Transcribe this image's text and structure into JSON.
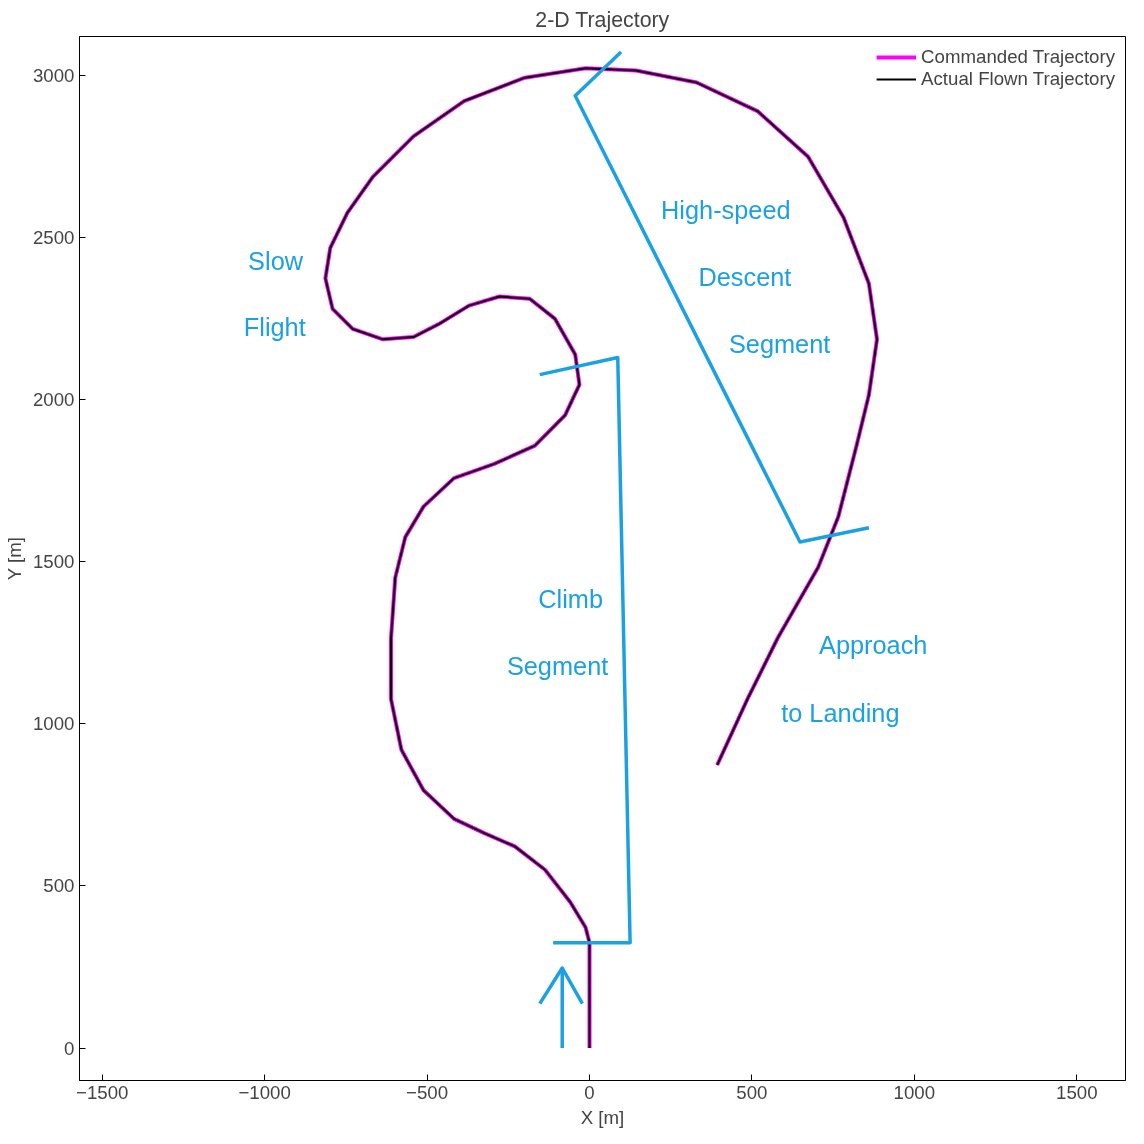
{
  "chart_data": {
    "type": "line",
    "title": "2-D Trajectory",
    "xlabel": "X [m]",
    "ylabel": "Y [m]",
    "xlim": [
      -1570,
      1650
    ],
    "ylim": [
      -100,
      3120
    ],
    "xticks": [
      -1500,
      -1000,
      -500,
      0,
      500,
      1000,
      1500
    ],
    "yticks": [
      0,
      500,
      1000,
      1500,
      2000,
      2500,
      3000
    ],
    "grid": false,
    "legend": "top right",
    "line_style": "solid",
    "marker": "none",
    "x": [
      0,
      0,
      -12,
      -59,
      -137,
      -230,
      -324,
      -417,
      -511,
      -579,
      -611,
      -611,
      -598,
      -567,
      -511,
      -417,
      -293,
      -168,
      -75,
      -31,
      -44,
      -106,
      -184,
      -277,
      -371,
      -464,
      -542,
      -636,
      -729,
      -791,
      -813,
      -798,
      -745,
      -667,
      -542,
      -386,
      -199,
      -12,
      143,
      330,
      517,
      673,
      782,
      860,
      885,
      860,
      822,
      766,
      704,
      579,
      486,
      393
    ],
    "series": [
      {
        "name": "Commanded Trajectory",
        "color": "#ff00ff",
        "values": [
          0,
          325,
          372,
          450,
          550,
          622,
          663,
          707,
          795,
          920,
          1076,
          1264,
          1451,
          1576,
          1670,
          1758,
          1802,
          1858,
          1952,
          2046,
          2139,
          2249,
          2311,
          2318,
          2290,
          2233,
          2193,
          2186,
          2218,
          2280,
          2374,
          2468,
          2577,
          2687,
          2812,
          2921,
          2993,
          3022,
          3015,
          2978,
          2890,
          2749,
          2562,
          2358,
          2186,
          2014,
          1858,
          1639,
          1483,
          1264,
          1076,
          873
        ]
      },
      {
        "name": "Actual Flown Trajectory",
        "color": "#000000",
        "values": [
          0,
          325,
          372,
          450,
          550,
          622,
          663,
          707,
          795,
          920,
          1076,
          1264,
          1451,
          1576,
          1670,
          1758,
          1802,
          1858,
          1952,
          2046,
          2139,
          2249,
          2311,
          2318,
          2290,
          2233,
          2193,
          2186,
          2218,
          2280,
          2374,
          2468,
          2577,
          2687,
          2812,
          2921,
          2993,
          3022,
          3015,
          2978,
          2890,
          2749,
          2562,
          2358,
          2186,
          2014,
          1858,
          1639,
          1483,
          1264,
          1076,
          873
        ]
      },
      {
        "color": "#1ba1e2",
        "x": [
          -112,
          125,
          87,
          -153
        ],
        "values": [
          325,
          325,
          2130,
          2077
        ]
      },
      {
        "color": "#1ba1e2",
        "x": [
          97,
          -44,
          648,
          860
        ],
        "values": [
          3072,
          2937,
          1561,
          1605
        ]
      },
      {
        "color": "#1ba1e2",
        "x": [
          -84,
          -84
        ],
        "values": [
          0,
          247
        ]
      },
      {
        "color": "#1ba1e2",
        "x": [
          -153,
          -84,
          -22
        ],
        "values": [
          137,
          247,
          137
        ]
      }
    ],
    "annotations": [
      {
        "text": "Slow",
        "x": -805,
        "y": 2427
      },
      {
        "text": "Flight",
        "x": -735,
        "y": 2224
      },
      {
        "text": "High-speed",
        "x": 134,
        "y": 2584
      },
      {
        "text": "Descent",
        "x": 237,
        "y": 2377
      },
      {
        "text": "Segment",
        "x": 343,
        "y": 2171
      },
      {
        "text": "Climb",
        "x": 103,
        "y": 1386
      },
      {
        "text": "Segment",
        "x": 107,
        "y": 1179
      },
      {
        "text": "Approach",
        "x": 568,
        "y": 1242
      },
      {
        "text": "to Landing",
        "x": 467,
        "y": 1035
      }
    ]
  }
}
